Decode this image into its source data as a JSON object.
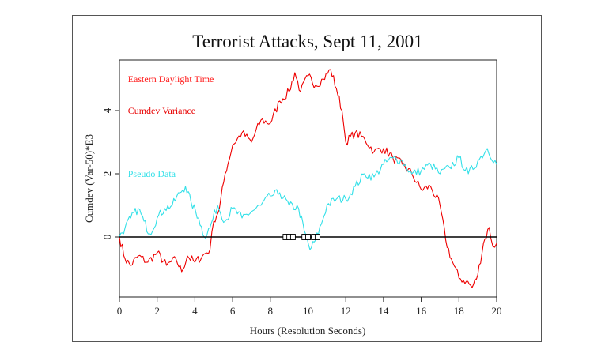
{
  "chart_data": {
    "type": "line",
    "title": "Terrorist Attacks, Sept 11, 2001",
    "xlabel": "Hours (Resolution Seconds)",
    "ylabel": "Cumdev (Var-50)*E3",
    "xlim": [
      0,
      20
    ],
    "ylim": [
      -1.9,
      5.6
    ],
    "x_ticks": [
      0,
      2,
      4,
      6,
      8,
      10,
      12,
      14,
      16,
      18,
      20
    ],
    "y_ticks": [
      0,
      2,
      4
    ],
    "legend_texts": [
      {
        "text": "Eastern Daylight Time",
        "color": "#ff1a1a"
      },
      {
        "text": "Cumdev Variance",
        "color": "#e80000"
      },
      {
        "text": "Pseudo Data",
        "color": "#33e0e8"
      }
    ],
    "series": [
      {
        "color": "#ee0000",
        "x": [
          0,
          0.3,
          0.6,
          1.0,
          1.5,
          2.0,
          2.5,
          3.0,
          3.3,
          3.6,
          4.0,
          4.4,
          4.8,
          5.0,
          5.3,
          5.6,
          6.0,
          6.5,
          7.0,
          7.5,
          8.0,
          8.5,
          9.0,
          9.3,
          9.6,
          10.0,
          10.4,
          10.8,
          11.2,
          11.5,
          11.8,
          12.0,
          12.5,
          13.0,
          13.5,
          14.0,
          14.5,
          15.0,
          15.5,
          16.0,
          16.5,
          17.0,
          17.3,
          17.6,
          18.0,
          18.4,
          18.7,
          19.0,
          19.3,
          19.6,
          19.8,
          20.0
        ],
        "y": [
          0,
          -0.7,
          -0.9,
          -0.6,
          -0.8,
          -0.5,
          -0.9,
          -0.7,
          -1.1,
          -0.6,
          -0.8,
          -0.6,
          -0.4,
          0.5,
          0.9,
          2.0,
          2.9,
          3.3,
          3.0,
          3.7,
          3.6,
          4.3,
          4.6,
          5.2,
          4.6,
          5.1,
          4.8,
          5.0,
          5.3,
          4.7,
          4.0,
          3.0,
          3.3,
          3.1,
          2.7,
          2.8,
          2.5,
          2.3,
          2.0,
          1.5,
          1.6,
          1.0,
          -0.1,
          -0.7,
          -1.3,
          -1.4,
          -1.6,
          -1.2,
          -0.2,
          0.3,
          -0.3,
          -0.2
        ]
      },
      {
        "color": "#33e0e8",
        "x": [
          0,
          0.3,
          0.6,
          1.0,
          1.3,
          1.6,
          2.0,
          2.4,
          2.8,
          3.2,
          3.5,
          3.8,
          4.2,
          4.5,
          4.8,
          5.2,
          5.6,
          6.0,
          6.5,
          7.0,
          7.5,
          8.0,
          8.5,
          9.0,
          9.5,
          9.8,
          10.1,
          10.4,
          10.7,
          11.0,
          11.5,
          12.0,
          12.5,
          13.0,
          13.5,
          14.0,
          14.5,
          15.0,
          15.5,
          16.0,
          16.5,
          17.0,
          17.5,
          18.0,
          18.5,
          19.0,
          19.5,
          20.0
        ],
        "y": [
          0,
          0.3,
          0.6,
          0.9,
          0.5,
          0.1,
          0.6,
          0.9,
          1.0,
          1.4,
          1.6,
          1.1,
          0.6,
          0.0,
          0.3,
          1.0,
          0.5,
          0.9,
          0.6,
          0.8,
          1.0,
          1.3,
          1.4,
          1.0,
          0.9,
          0.2,
          -0.4,
          -0.1,
          0.4,
          1.0,
          1.2,
          1.2,
          1.6,
          2.0,
          1.9,
          2.3,
          2.5,
          2.4,
          2.0,
          2.1,
          2.3,
          2.0,
          2.2,
          2.5,
          2.0,
          2.4,
          2.8,
          2.3
        ]
      }
    ],
    "markers": {
      "type": "square",
      "y": 0,
      "x": [
        8.8,
        9.0,
        9.2,
        9.8,
        10.0,
        10.3,
        10.5
      ]
    }
  }
}
